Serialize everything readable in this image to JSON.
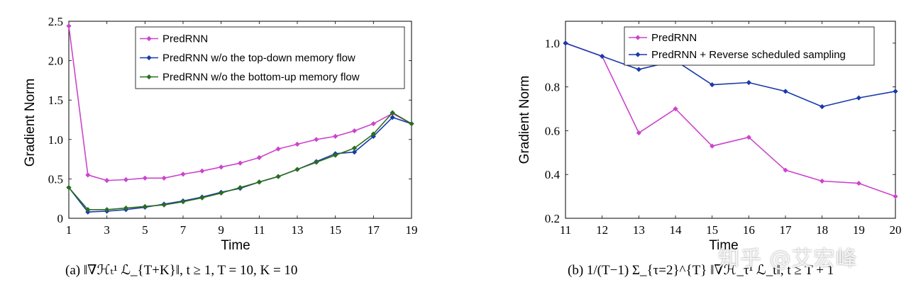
{
  "charts": [
    {
      "type": "line",
      "xlabel": "Time",
      "ylabel": "Gradient Norm",
      "xlim": [
        1,
        19
      ],
      "ylim": [
        0,
        2.5
      ],
      "xticks": [
        1,
        3,
        5,
        7,
        9,
        11,
        13,
        15,
        17,
        19
      ],
      "yticks": [
        0,
        0.5,
        1.0,
        1.5,
        2.0,
        2.5
      ],
      "ytick_labels": [
        "0",
        "0.5",
        "1.0",
        "1.5",
        "2.0",
        "2.5"
      ],
      "x": [
        1,
        2,
        3,
        4,
        5,
        6,
        7,
        8,
        9,
        10,
        11,
        12,
        13,
        14,
        15,
        16,
        17,
        18,
        19
      ],
      "series": [
        {
          "name": "PredRNN",
          "color": "#cc44cc",
          "values": [
            2.44,
            0.55,
            0.48,
            0.49,
            0.51,
            0.51,
            0.56,
            0.6,
            0.65,
            0.7,
            0.77,
            0.88,
            0.94,
            1.0,
            1.04,
            1.11,
            1.2,
            1.33,
            1.2
          ]
        },
        {
          "name": "PredRNN w/o the top-down memory flow",
          "color": "#1a3aaa",
          "values": [
            0.39,
            0.08,
            0.09,
            0.11,
            0.14,
            0.18,
            0.22,
            0.27,
            0.33,
            0.38,
            0.46,
            0.53,
            0.62,
            0.72,
            0.82,
            0.84,
            1.04,
            1.28,
            1.2
          ]
        },
        {
          "name": "PredRNN w/o the bottom-up memory flow",
          "color": "#2a6e1e",
          "values": [
            0.39,
            0.11,
            0.11,
            0.13,
            0.15,
            0.17,
            0.21,
            0.26,
            0.32,
            0.39,
            0.46,
            0.53,
            0.62,
            0.71,
            0.8,
            0.89,
            1.07,
            1.34,
            1.2
          ]
        }
      ],
      "legend_position": "top-right",
      "caption": "(a) ‖∇ℋₜ¹ ℒ_{T+K}‖, t ≥ 1, T = 10, K = 10"
    },
    {
      "type": "line",
      "xlabel": "Time",
      "ylabel": "Gradient Norm",
      "xlim": [
        11,
        20
      ],
      "ylim": [
        0.2,
        1.1
      ],
      "xticks": [
        11,
        12,
        13,
        14,
        15,
        16,
        17,
        18,
        19,
        20
      ],
      "yticks": [
        0.2,
        0.4,
        0.6,
        0.8,
        1.0
      ],
      "ytick_labels": [
        "0.2",
        "0.4",
        "0.6",
        "0.8",
        "1.0"
      ],
      "x": [
        11,
        12,
        13,
        14,
        15,
        16,
        17,
        18,
        19,
        20
      ],
      "series": [
        {
          "name": "PredRNN",
          "color": "#cc44cc",
          "values": [
            1.0,
            0.94,
            0.59,
            0.7,
            0.53,
            0.57,
            0.42,
            0.37,
            0.36,
            0.3
          ]
        },
        {
          "name": "PredRNN + Reverse scheduled sampling",
          "color": "#1a3aaa",
          "values": [
            1.0,
            0.94,
            0.88,
            0.92,
            0.81,
            0.82,
            0.78,
            0.71,
            0.75,
            0.78
          ]
        }
      ],
      "legend_position": "top-right",
      "caption": "(b) 1/(T−1) Σ_{τ=2}^{T} ‖∇ℋ_τ¹ ℒ_t‖, t ≥ T + 1"
    }
  ],
  "watermark": "知乎 @艾宏峰"
}
